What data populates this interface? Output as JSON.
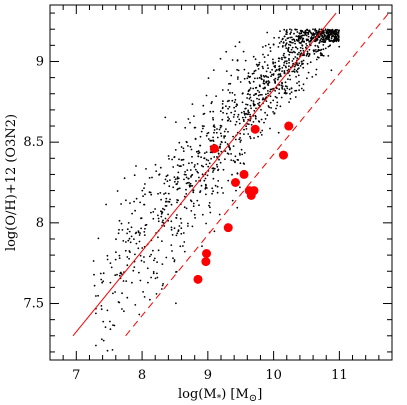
{
  "chart_data": {
    "type": "scatter",
    "title": "",
    "xlabel": "log(M",
    "xlabel_star": "*",
    "xlabel_tail": ") [M",
    "xlabel_sun": "⊙",
    "xlabel_end": "]",
    "ylabel": "log(O/H)+12 (O3N2)",
    "xlim": [
      6.6,
      11.8
    ],
    "ylim": [
      7.15,
      9.35
    ],
    "x_ticks": [
      7,
      8,
      9,
      10,
      11
    ],
    "y_ticks": [
      7.5,
      8,
      8.5,
      9
    ],
    "x_tick_labels": [
      "7",
      "8",
      "9",
      "10",
      "11"
    ],
    "y_tick_labels": [
      "7.5",
      "8",
      "8.5",
      "9"
    ],
    "x_minor_step": 0.2,
    "y_minor_step": 0.1,
    "grid": false,
    "colors": {
      "background_points": "#000000",
      "highlight": "#ff0000",
      "axes": "#000000"
    },
    "background_sample": {
      "description_points": 1400,
      "count": 1400,
      "x_range": [
        7.1,
        11.0
      ],
      "slope": 0.5,
      "intercept": 3.9,
      "scatter": 0.18,
      "y_cap": 9.2
    },
    "series": [
      {
        "kind": "points",
        "points": [
          [
            8.85,
            7.65
          ],
          [
            8.97,
            7.76
          ],
          [
            8.98,
            7.81
          ],
          [
            9.1,
            8.46
          ],
          [
            9.31,
            7.97
          ],
          [
            9.42,
            8.25
          ],
          [
            9.55,
            8.3
          ],
          [
            9.63,
            8.2
          ],
          [
            9.66,
            8.17
          ],
          [
            9.7,
            8.2
          ],
          [
            9.72,
            8.58
          ],
          [
            10.15,
            8.42
          ],
          [
            10.23,
            8.6
          ]
        ]
      },
      {
        "kind": "solid-line",
        "points": [
          [
            6.95,
            7.3
          ],
          [
            10.95,
            9.3
          ]
        ]
      },
      {
        "kind": "dashed-line",
        "points": [
          [
            7.75,
            7.3
          ],
          [
            11.75,
            9.3
          ]
        ]
      }
    ]
  }
}
